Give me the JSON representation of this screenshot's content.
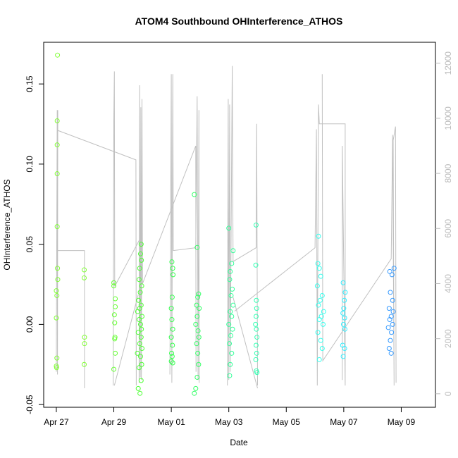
{
  "chart_data": {
    "type": "scatter",
    "title": "ATOM4 Southbound OHInterference_ATHOS",
    "x_label": "Date",
    "y_label": "OHInterference_ATHOS",
    "xlim": [
      26.56,
      40.19
    ],
    "xticks": [
      {
        "value": 27,
        "label": "Apr 27"
      },
      {
        "value": 29,
        "label": "Apr 29"
      },
      {
        "value": 31,
        "label": "May 01"
      },
      {
        "value": 33,
        "label": "May 03"
      },
      {
        "value": 35,
        "label": "May 05"
      },
      {
        "value": 37,
        "label": "May 07"
      },
      {
        "value": 39,
        "label": "May 09"
      }
    ],
    "ylim": [
      -0.0517,
      0.176
    ],
    "yticks": [
      -0.05,
      {
        "value": 0,
        "label": "0.00"
      },
      0.05,
      {
        "value": 0.1,
        "label": "0.10"
      },
      0.15
    ],
    "y2lim": [
      -490,
      12760
    ],
    "y2ticks": [
      0,
      2000,
      4000,
      6000,
      8000,
      10000,
      12000
    ],
    "series": [
      {
        "color": "#80ff33",
        "x": [
          27.04,
          27.03,
          27.03,
          27.03,
          27.03,
          27.04,
          27.05,
          27.0,
          27.02,
          27.0,
          27.02,
          27.0,
          27.01
        ],
        "values": [
          0.168,
          0.127,
          0.112,
          0.094,
          0.061,
          0.035,
          0.028,
          0.021,
          0.018,
          0.004,
          -0.021,
          -0.026,
          -0.027
        ]
      },
      {
        "color": "#80ff33",
        "x": [
          27.97,
          27.97,
          27.98,
          27.98,
          27.97
        ],
        "values": [
          0.034,
          0.029,
          -0.008,
          -0.012,
          -0.025
        ]
      },
      {
        "color": "#66ff33",
        "x": [
          29.0,
          29.0,
          29.05,
          29.05,
          29.02,
          29.03,
          29.04,
          29.03,
          29.05,
          29.0
        ],
        "values": [
          0.026,
          0.024,
          0.016,
          0.011,
          0.006,
          0.001,
          -0.008,
          -0.009,
          -0.018,
          -0.028
        ]
      },
      {
        "color": "#4dff33",
        "x": [
          29.95,
          29.93,
          29.96,
          29.9,
          29.88,
          29.97,
          29.92,
          29.86,
          29.95,
          29.9,
          29.83,
          29.98,
          29.88,
          29.93,
          29.96,
          29.85,
          29.95,
          29.9,
          29.98,
          29.82,
          29.93,
          29.97,
          29.88,
          29.95,
          29.85,
          29.91
        ],
        "values": [
          0.05,
          0.044,
          0.04,
          0.035,
          0.028,
          0.024,
          0.02,
          0.015,
          0.012,
          0.01,
          0.008,
          0.005,
          0.003,
          0.0,
          -0.003,
          -0.005,
          -0.008,
          -0.012,
          -0.015,
          -0.018,
          -0.02,
          -0.025,
          -0.027,
          -0.035,
          -0.04,
          -0.043
        ]
      },
      {
        "color": "#33ff4d",
        "x": [
          31.02,
          31.05,
          31.06,
          31.03,
          31.0,
          31.02,
          31.05,
          31.0,
          31.04,
          31.01,
          31.03,
          31.0,
          31.05
        ],
        "values": [
          0.039,
          0.035,
          0.031,
          0.017,
          0.01,
          0.003,
          -0.003,
          -0.008,
          -0.013,
          -0.018,
          -0.02,
          -0.023,
          -0.024
        ]
      },
      {
        "color": "#33ff66",
        "x": [
          31.8,
          31.9,
          31.95,
          31.92,
          31.88,
          31.97,
          31.9,
          31.85,
          31.93,
          31.96,
          31.88,
          31.92,
          31.95,
          31.9,
          31.85,
          31.8
        ],
        "values": [
          0.081,
          0.048,
          0.019,
          0.017,
          0.012,
          0.01,
          0.005,
          0.0,
          -0.004,
          -0.008,
          -0.012,
          -0.018,
          -0.025,
          -0.033,
          -0.04,
          -0.043
        ]
      },
      {
        "color": "#33ff99",
        "x": [
          33.0,
          33.15,
          33.1,
          33.05,
          33.03,
          33.12,
          33.08,
          33.15,
          33.05,
          33.1,
          33.0,
          33.13,
          33.07,
          33.02,
          33.1,
          33.05,
          33.03
        ],
        "values": [
          0.06,
          0.046,
          0.038,
          0.033,
          0.028,
          0.022,
          0.018,
          0.012,
          0.008,
          0.005,
          0.0,
          -0.003,
          -0.007,
          -0.012,
          -0.018,
          -0.025,
          -0.032
        ]
      },
      {
        "color": "#33ffb3",
        "x": [
          33.95,
          33.94,
          33.96,
          33.97,
          33.95,
          33.93,
          33.96,
          33.98,
          33.95,
          33.97,
          33.94,
          33.96,
          33.98
        ],
        "values": [
          0.062,
          0.037,
          0.015,
          0.01,
          0.005,
          0.0,
          -0.003,
          -0.008,
          -0.013,
          -0.018,
          -0.022,
          -0.029,
          -0.03
        ]
      },
      {
        "color": "#33ffee",
        "x": [
          36.12,
          36.1,
          36.15,
          36.2,
          36.08,
          36.25,
          36.18,
          36.12,
          36.3,
          36.22,
          36.15,
          36.28,
          36.1,
          36.2,
          36.25,
          36.15
        ],
        "values": [
          0.055,
          0.038,
          0.035,
          0.03,
          0.024,
          0.018,
          0.015,
          0.012,
          0.008,
          0.005,
          0.003,
          0.0,
          -0.005,
          -0.01,
          -0.015,
          -0.022
        ]
      },
      {
        "color": "#33eeff",
        "x": [
          36.98,
          37.05,
          37.02,
          37.0,
          36.97,
          37.03,
          36.99,
          37.04,
          36.96,
          37.03,
          36.98
        ],
        "values": [
          0.026,
          0.02,
          0.015,
          0.01,
          0.007,
          0.004,
          0.0,
          -0.003,
          -0.013,
          -0.015,
          -0.02
        ]
      },
      {
        "color": "#3399ff",
        "x": [
          38.75,
          38.6,
          38.68,
          38.62,
          38.7,
          38.58,
          38.72,
          38.65,
          38.6,
          38.7,
          38.55,
          38.66,
          38.62,
          38.58,
          38.65
        ],
        "values": [
          0.035,
          0.033,
          0.031,
          0.02,
          0.015,
          0.01,
          0.008,
          0.005,
          0.003,
          0.0,
          -0.002,
          -0.005,
          -0.01,
          -0.015,
          -0.018
        ]
      },
      {
        "axis": "y2",
        "color": "#c0c0c0",
        "x": [
          27.0,
          27.98,
          27.98,
          null,
          27.0,
          27.03,
          27.04,
          27.05,
          27.05,
          29.77,
          29.78,
          null,
          28.98,
          29.0,
          29.02,
          29.03,
          29.9,
          29.88,
          29.9,
          29.92,
          29.94,
          29.96,
          29.98,
          30.0,
          31.85,
          31.86,
          null,
          29.02,
          29.85,
          null,
          30.95,
          31.0,
          31.02,
          31.05,
          31.07,
          31.85,
          31.9,
          31.93,
          31.96,
          31.97,
          null,
          32.95,
          32.98,
          33.0,
          33.03,
          33.05,
          33.12,
          33.15,
          33.95,
          33.97,
          34.0,
          null,
          33.15,
          34.0,
          null,
          33.2,
          36.0,
          36.05,
          36.08,
          36.12,
          36.15,
          37.05,
          37.05,
          36.95,
          36.95,
          null,
          36.25,
          36.27,
          38.65,
          38.7,
          38.75,
          38.72,
          38.8,
          38.82
        ],
        "values": [
          5200,
          5200,
          200,
          null,
          800,
          10300,
          700,
          10300,
          9560,
          8490,
          300,
          null,
          300,
          9900,
          11700,
          3900,
          5600,
          400,
          11200,
          600,
          10400,
          500,
          10700,
          4000,
          9000,
          800,
          null,
          300,
          3600,
          null,
          700,
          11600,
          400,
          11600,
          5200,
          5300,
          10800,
          500,
          10300,
          400,
          null,
          300,
          10700,
          500,
          10500,
          800,
          11900,
          4800,
          5300,
          9800,
          300,
          null,
          3500,
          200,
          null,
          3000,
          5300,
          9600,
          300,
          10500,
          9800,
          9800,
          300,
          9000,
          500,
          null,
          11600,
          1200,
          4900,
          9400,
          300,
          9200,
          9700,
          400
        ]
      }
    ]
  }
}
